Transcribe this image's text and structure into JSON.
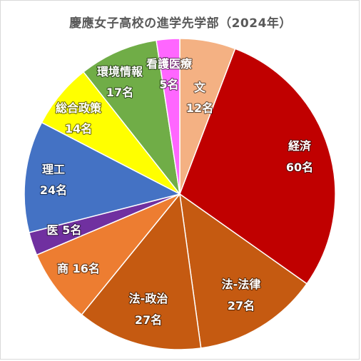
{
  "chart_data": {
    "type": "pie",
    "title": "慶應女子高校の進学先学部（2024年）",
    "unit": "名",
    "start_angle_deg": 0,
    "direction": "clockwise",
    "categories": [
      "文",
      "経済",
      "法-法律",
      "法-政治",
      "商",
      "医",
      "理工",
      "総合政策",
      "環境情報",
      "看護医療"
    ],
    "values": [
      12,
      60,
      27,
      27,
      16,
      5,
      24,
      14,
      17,
      5
    ],
    "labels": [
      "12名",
      "60名",
      "27名",
      "27名",
      "16名",
      "5名",
      "24名",
      "14名",
      "17名",
      "5名"
    ],
    "colors": [
      "#F4B183",
      "#C00000",
      "#C55A11",
      "#C55A11",
      "#ED7D31",
      "#7030A0",
      "#4472C4",
      "#FFFF00",
      "#70AD47",
      "#FF66FF"
    ]
  }
}
